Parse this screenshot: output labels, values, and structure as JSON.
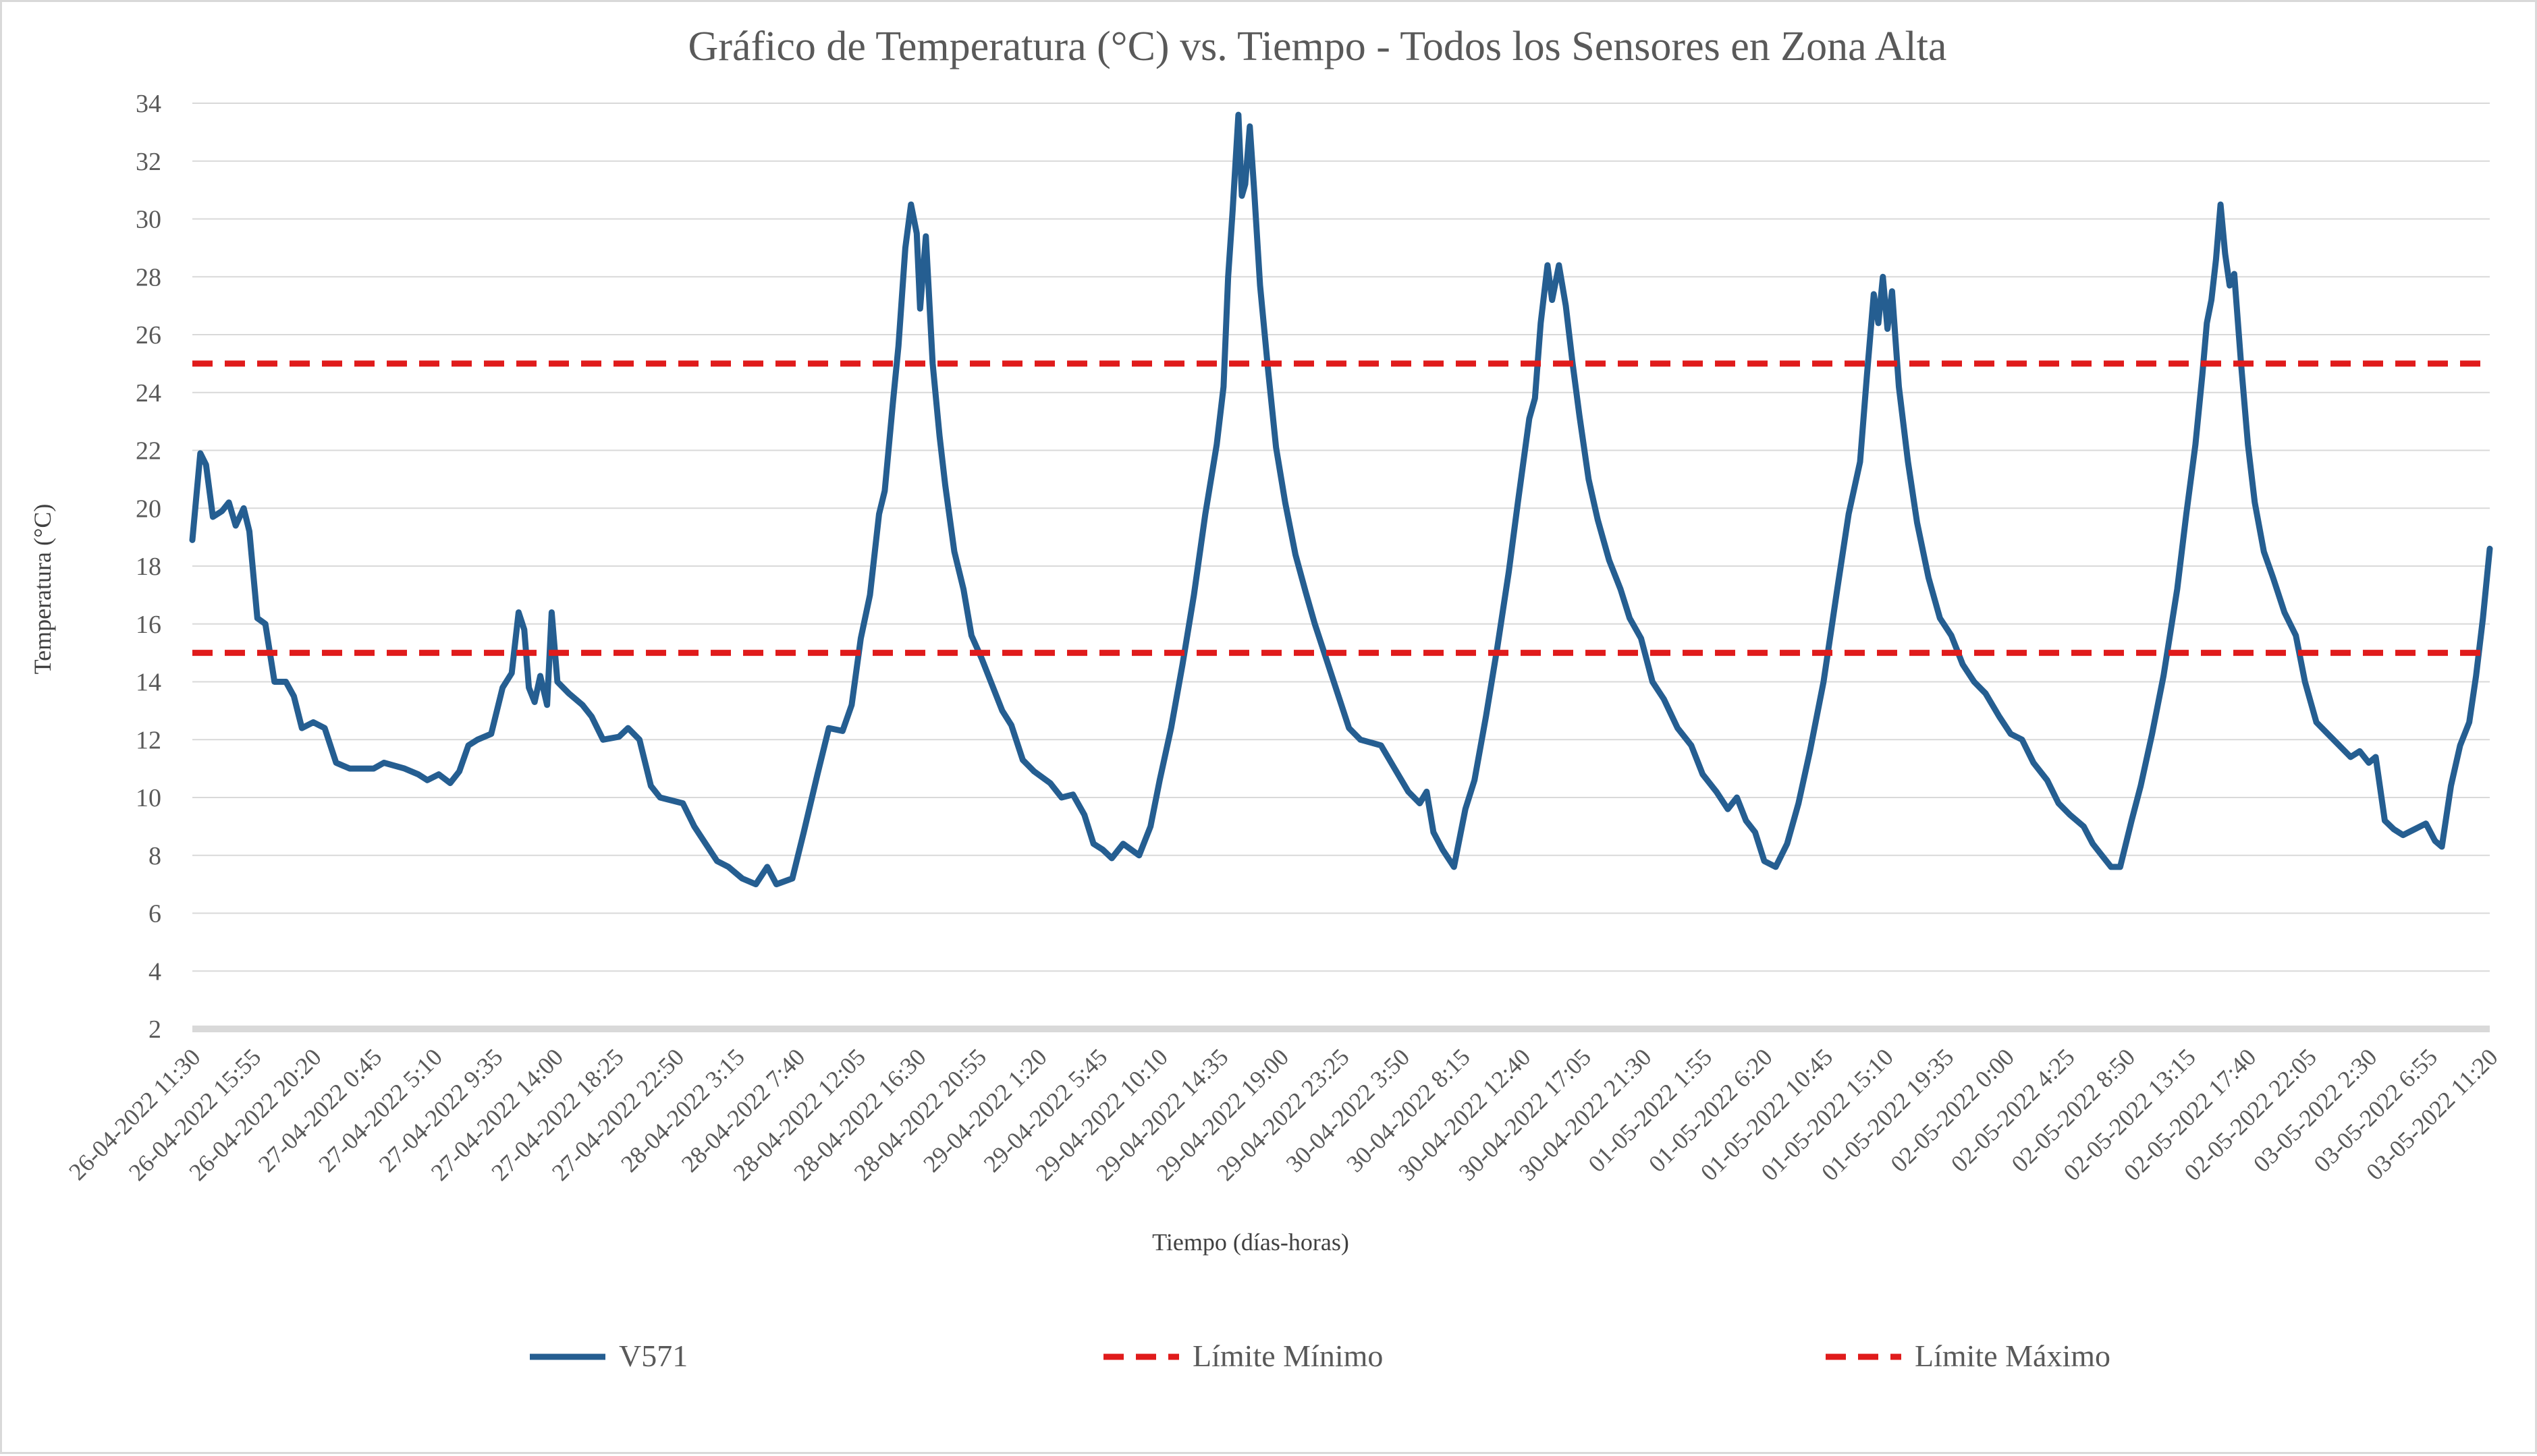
{
  "chart_data": {
    "type": "line",
    "title": "Gráfico de Temperatura (°C) vs. Tiempo - Todos los Sensores en Zona Alta",
    "xlabel": "Tiempo (días-horas)",
    "ylabel": "Temperatura (°C)",
    "ylim": [
      2,
      34
    ],
    "y_ticks": [
      2,
      4,
      6,
      8,
      10,
      12,
      14,
      16,
      18,
      20,
      22,
      24,
      26,
      28,
      30,
      32,
      34
    ],
    "x_range": [
      "2022-04-26 11:30",
      "2022-05-03 11:20"
    ],
    "x_tick_labels": [
      "26-04-2022 11:30",
      "26-04-2022 15:55",
      "26-04-2022 20:20",
      "27-04-2022 0:45",
      "27-04-2022 5:10",
      "27-04-2022 9:35",
      "27-04-2022 14:00",
      "27-04-2022 18:25",
      "27-04-2022 22:50",
      "28-04-2022 3:15",
      "28-04-2022 7:40",
      "28-04-2022 12:05",
      "28-04-2022 16:30",
      "28-04-2022 20:55",
      "29-04-2022 1:20",
      "29-04-2022 5:45",
      "29-04-2022 10:10",
      "29-04-2022 14:35",
      "29-04-2022 19:00",
      "29-04-2022 23:25",
      "30-04-2022 3:50",
      "30-04-2022 8:15",
      "30-04-2022 12:40",
      "30-04-2022 17:05",
      "30-04-2022 21:30",
      "01-05-2022 1:55",
      "01-05-2022 6:20",
      "01-05-2022 10:45",
      "01-05-2022 15:10",
      "01-05-2022 19:35",
      "02-05-2022 0:00",
      "02-05-2022 4:25",
      "02-05-2022 8:50",
      "02-05-2022 13:15",
      "02-05-2022 17:40",
      "02-05-2022 22:05",
      "03-05-2022 2:30",
      "03-05-2022 6:55",
      "03-05-2022 11:20"
    ],
    "grid": "horizontal",
    "legend_position": "bottom",
    "series": [
      {
        "name": "V571",
        "color": "#255e91",
        "style": "solid",
        "points": [
          [
            "2022-04-26 11:30",
            18.9
          ],
          [
            "2022-04-26 12:05",
            21.9
          ],
          [
            "2022-04-26 12:30",
            21.5
          ],
          [
            "2022-04-26 13:00",
            19.7
          ],
          [
            "2022-04-26 13:40",
            19.9
          ],
          [
            "2022-04-26 14:10",
            20.2
          ],
          [
            "2022-04-26 14:40",
            19.4
          ],
          [
            "2022-04-26 15:15",
            20.0
          ],
          [
            "2022-04-26 15:40",
            19.2
          ],
          [
            "2022-04-26 16:15",
            16.2
          ],
          [
            "2022-04-26 16:50",
            16.0
          ],
          [
            "2022-04-26 17:30",
            14.0
          ],
          [
            "2022-04-26 18:20",
            14.0
          ],
          [
            "2022-04-26 18:55",
            13.5
          ],
          [
            "2022-04-26 19:30",
            12.4
          ],
          [
            "2022-04-26 20:20",
            12.6
          ],
          [
            "2022-04-26 21:10",
            12.4
          ],
          [
            "2022-04-26 22:00",
            11.2
          ],
          [
            "2022-04-26 23:00",
            11.0
          ],
          [
            "2022-04-27 00:45",
            11.0
          ],
          [
            "2022-04-27 01:30",
            11.2
          ],
          [
            "2022-04-27 03:00",
            11.0
          ],
          [
            "2022-04-27 04:00",
            10.8
          ],
          [
            "2022-04-27 04:40",
            10.6
          ],
          [
            "2022-04-27 05:30",
            10.8
          ],
          [
            "2022-04-27 06:20",
            10.5
          ],
          [
            "2022-04-27 07:00",
            10.9
          ],
          [
            "2022-04-27 07:40",
            11.8
          ],
          [
            "2022-04-27 08:20",
            12.0
          ],
          [
            "2022-04-27 09:20",
            12.2
          ],
          [
            "2022-04-27 10:10",
            13.8
          ],
          [
            "2022-04-27 10:50",
            14.3
          ],
          [
            "2022-04-27 11:20",
            16.4
          ],
          [
            "2022-04-27 11:45",
            15.8
          ],
          [
            "2022-04-27 12:05",
            13.8
          ],
          [
            "2022-04-27 12:30",
            13.3
          ],
          [
            "2022-04-27 12:55",
            14.2
          ],
          [
            "2022-04-27 13:25",
            13.2
          ],
          [
            "2022-04-27 13:45",
            16.4
          ],
          [
            "2022-04-27 14:10",
            14.0
          ],
          [
            "2022-04-27 15:00",
            13.6
          ],
          [
            "2022-04-27 16:00",
            13.2
          ],
          [
            "2022-04-27 16:40",
            12.8
          ],
          [
            "2022-04-27 17:30",
            12.0
          ],
          [
            "2022-04-27 18:40",
            12.1
          ],
          [
            "2022-04-27 19:20",
            12.4
          ],
          [
            "2022-04-27 20:10",
            12.0
          ],
          [
            "2022-04-27 21:00",
            10.4
          ],
          [
            "2022-04-27 21:40",
            10.0
          ],
          [
            "2022-04-27 23:20",
            9.8
          ],
          [
            "2022-04-28 00:10",
            9.0
          ],
          [
            "2022-04-28 01:00",
            8.4
          ],
          [
            "2022-04-28 01:50",
            7.8
          ],
          [
            "2022-04-28 02:40",
            7.6
          ],
          [
            "2022-04-28 03:40",
            7.2
          ],
          [
            "2022-04-28 04:40",
            7.0
          ],
          [
            "2022-04-28 05:30",
            7.6
          ],
          [
            "2022-04-28 06:10",
            7.0
          ],
          [
            "2022-04-28 07:20",
            7.2
          ],
          [
            "2022-04-28 08:10",
            8.8
          ],
          [
            "2022-04-28 09:10",
            10.8
          ],
          [
            "2022-04-28 10:00",
            12.4
          ],
          [
            "2022-04-28 11:00",
            12.3
          ],
          [
            "2022-04-28 11:40",
            13.2
          ],
          [
            "2022-04-28 12:20",
            15.5
          ],
          [
            "2022-04-28 13:00",
            17.0
          ],
          [
            "2022-04-28 13:40",
            19.8
          ],
          [
            "2022-04-28 14:05",
            20.6
          ],
          [
            "2022-04-28 14:40",
            23.6
          ],
          [
            "2022-04-28 15:05",
            25.6
          ],
          [
            "2022-04-28 15:35",
            29.0
          ],
          [
            "2022-04-28 16:00",
            30.5
          ],
          [
            "2022-04-28 16:25",
            29.5
          ],
          [
            "2022-04-28 16:40",
            26.9
          ],
          [
            "2022-04-28 17:05",
            29.4
          ],
          [
            "2022-04-28 17:35",
            25.0
          ],
          [
            "2022-04-28 18:05",
            22.5
          ],
          [
            "2022-04-28 18:30",
            20.8
          ],
          [
            "2022-04-28 19:10",
            18.5
          ],
          [
            "2022-04-28 19:50",
            17.2
          ],
          [
            "2022-04-28 20:25",
            15.6
          ],
          [
            "2022-04-28 21:10",
            14.8
          ],
          [
            "2022-04-28 21:50",
            14.0
          ],
          [
            "2022-04-28 22:40",
            13.0
          ],
          [
            "2022-04-28 23:20",
            12.5
          ],
          [
            "2022-04-29 00:10",
            11.3
          ],
          [
            "2022-04-29 01:00",
            10.9
          ],
          [
            "2022-04-29 02:10",
            10.5
          ],
          [
            "2022-04-29 03:00",
            10.0
          ],
          [
            "2022-04-29 03:50",
            10.1
          ],
          [
            "2022-04-29 04:40",
            9.4
          ],
          [
            "2022-04-29 05:20",
            8.4
          ],
          [
            "2022-04-29 06:00",
            8.2
          ],
          [
            "2022-04-29 06:40",
            7.9
          ],
          [
            "2022-04-29 07:30",
            8.4
          ],
          [
            "2022-04-29 08:40",
            8.0
          ],
          [
            "2022-04-29 09:30",
            9.0
          ],
          [
            "2022-04-29 10:10",
            10.6
          ],
          [
            "2022-04-29 11:00",
            12.4
          ],
          [
            "2022-04-29 11:50",
            14.6
          ],
          [
            "2022-04-29 12:40",
            17.0
          ],
          [
            "2022-04-29 13:30",
            19.8
          ],
          [
            "2022-04-29 14:20",
            22.2
          ],
          [
            "2022-04-29 14:50",
            24.2
          ],
          [
            "2022-04-29 15:10",
            28.0
          ],
          [
            "2022-04-29 15:30",
            30.3
          ],
          [
            "2022-04-29 15:55",
            33.6
          ],
          [
            "2022-04-29 16:10",
            30.8
          ],
          [
            "2022-04-29 16:25",
            31.2
          ],
          [
            "2022-04-29 16:45",
            33.2
          ],
          [
            "2022-04-29 17:05",
            30.9
          ],
          [
            "2022-04-29 17:30",
            27.7
          ],
          [
            "2022-04-29 18:05",
            24.8
          ],
          [
            "2022-04-29 18:40",
            22.1
          ],
          [
            "2022-04-29 19:20",
            20.2
          ],
          [
            "2022-04-29 20:05",
            18.4
          ],
          [
            "2022-04-29 20:50",
            17.1
          ],
          [
            "2022-04-29 21:30",
            16.0
          ],
          [
            "2022-04-29 22:20",
            14.8
          ],
          [
            "2022-04-29 23:10",
            13.6
          ],
          [
            "2022-04-30 00:00",
            12.4
          ],
          [
            "2022-04-30 00:50",
            12.0
          ],
          [
            "2022-04-30 02:20",
            11.8
          ],
          [
            "2022-04-30 03:20",
            11.0
          ],
          [
            "2022-04-30 04:20",
            10.2
          ],
          [
            "2022-04-30 05:10",
            9.8
          ],
          [
            "2022-04-30 05:40",
            10.2
          ],
          [
            "2022-04-30 06:10",
            8.8
          ],
          [
            "2022-04-30 06:50",
            8.2
          ],
          [
            "2022-04-30 07:40",
            7.6
          ],
          [
            "2022-04-30 08:30",
            9.6
          ],
          [
            "2022-04-30 09:10",
            10.6
          ],
          [
            "2022-04-30 10:00",
            12.8
          ],
          [
            "2022-04-30 10:50",
            15.2
          ],
          [
            "2022-04-30 11:40",
            17.8
          ],
          [
            "2022-04-30 12:20",
            20.2
          ],
          [
            "2022-04-30 13:10",
            23.1
          ],
          [
            "2022-04-30 13:35",
            23.8
          ],
          [
            "2022-04-30 14:00",
            26.4
          ],
          [
            "2022-04-30 14:30",
            28.4
          ],
          [
            "2022-04-30 14:50",
            27.2
          ],
          [
            "2022-04-30 15:20",
            28.4
          ],
          [
            "2022-04-30 15:50",
            27.0
          ],
          [
            "2022-04-30 16:20",
            25.0
          ],
          [
            "2022-04-30 16:50",
            23.2
          ],
          [
            "2022-04-30 17:30",
            21.0
          ],
          [
            "2022-04-30 18:10",
            19.6
          ],
          [
            "2022-04-30 19:00",
            18.2
          ],
          [
            "2022-04-30 19:50",
            17.2
          ],
          [
            "2022-04-30 20:30",
            16.2
          ],
          [
            "2022-04-30 21:20",
            15.5
          ],
          [
            "2022-04-30 22:10",
            14.0
          ],
          [
            "2022-04-30 23:00",
            13.4
          ],
          [
            "2022-05-01 00:00",
            12.4
          ],
          [
            "2022-05-01 01:00",
            11.8
          ],
          [
            "2022-05-01 01:50",
            10.8
          ],
          [
            "2022-05-01 02:50",
            10.2
          ],
          [
            "2022-05-01 03:40",
            9.6
          ],
          [
            "2022-05-01 04:20",
            10.0
          ],
          [
            "2022-05-01 05:00",
            9.2
          ],
          [
            "2022-05-01 05:40",
            8.8
          ],
          [
            "2022-05-01 06:20",
            7.8
          ],
          [
            "2022-05-01 07:10",
            7.6
          ],
          [
            "2022-05-01 08:00",
            8.4
          ],
          [
            "2022-05-01 08:50",
            9.8
          ],
          [
            "2022-05-01 09:40",
            11.6
          ],
          [
            "2022-05-01 10:40",
            14.0
          ],
          [
            "2022-05-01 11:40",
            17.2
          ],
          [
            "2022-05-01 12:30",
            19.8
          ],
          [
            "2022-05-01 13:20",
            21.6
          ],
          [
            "2022-05-01 13:50",
            24.6
          ],
          [
            "2022-05-01 14:20",
            27.4
          ],
          [
            "2022-05-01 14:40",
            26.4
          ],
          [
            "2022-05-01 15:00",
            28.0
          ],
          [
            "2022-05-01 15:20",
            26.2
          ],
          [
            "2022-05-01 15:40",
            27.5
          ],
          [
            "2022-05-01 16:10",
            24.2
          ],
          [
            "2022-05-01 16:50",
            21.6
          ],
          [
            "2022-05-01 17:30",
            19.5
          ],
          [
            "2022-05-01 18:20",
            17.6
          ],
          [
            "2022-05-01 19:10",
            16.2
          ],
          [
            "2022-05-01 20:00",
            15.6
          ],
          [
            "2022-05-01 20:50",
            14.6
          ],
          [
            "2022-05-01 21:40",
            14.0
          ],
          [
            "2022-05-01 22:30",
            13.6
          ],
          [
            "2022-05-01 23:30",
            12.8
          ],
          [
            "2022-05-02 00:20",
            12.2
          ],
          [
            "2022-05-02 01:10",
            12.0
          ],
          [
            "2022-05-02 02:00",
            11.2
          ],
          [
            "2022-05-02 03:00",
            10.6
          ],
          [
            "2022-05-02 03:50",
            9.8
          ],
          [
            "2022-05-02 04:40",
            9.4
          ],
          [
            "2022-05-02 05:40",
            9.0
          ],
          [
            "2022-05-02 06:20",
            8.4
          ],
          [
            "2022-05-02 07:00",
            8.0
          ],
          [
            "2022-05-02 07:40",
            7.6
          ],
          [
            "2022-05-02 08:20",
            7.6
          ],
          [
            "2022-05-02 09:10",
            9.2
          ],
          [
            "2022-05-02 09:50",
            10.4
          ],
          [
            "2022-05-02 10:40",
            12.2
          ],
          [
            "2022-05-02 11:30",
            14.2
          ],
          [
            "2022-05-02 12:30",
            17.2
          ],
          [
            "2022-05-02 13:10",
            19.8
          ],
          [
            "2022-05-02 13:50",
            22.2
          ],
          [
            "2022-05-02 14:20",
            24.6
          ],
          [
            "2022-05-02 14:40",
            26.4
          ],
          [
            "2022-05-02 15:00",
            27.2
          ],
          [
            "2022-05-02 15:20",
            28.6
          ],
          [
            "2022-05-02 15:40",
            30.5
          ],
          [
            "2022-05-02 16:00",
            28.8
          ],
          [
            "2022-05-02 16:20",
            27.7
          ],
          [
            "2022-05-02 16:40",
            28.1
          ],
          [
            "2022-05-02 17:10",
            25.0
          ],
          [
            "2022-05-02 17:40",
            22.2
          ],
          [
            "2022-05-02 18:10",
            20.2
          ],
          [
            "2022-05-02 18:50",
            18.5
          ],
          [
            "2022-05-02 19:30",
            17.6
          ],
          [
            "2022-05-02 20:20",
            16.4
          ],
          [
            "2022-05-02 21:10",
            15.6
          ],
          [
            "2022-05-02 21:50",
            14.0
          ],
          [
            "2022-05-02 22:40",
            12.6
          ],
          [
            "2022-05-02 23:30",
            12.2
          ],
          [
            "2022-05-03 00:20",
            11.8
          ],
          [
            "2022-05-03 01:10",
            11.4
          ],
          [
            "2022-05-03 01:50",
            11.6
          ],
          [
            "2022-05-03 02:30",
            11.2
          ],
          [
            "2022-05-03 03:00",
            11.4
          ],
          [
            "2022-05-03 03:40",
            9.2
          ],
          [
            "2022-05-03 04:20",
            8.9
          ],
          [
            "2022-05-03 05:00",
            8.7
          ],
          [
            "2022-05-03 05:50",
            8.9
          ],
          [
            "2022-05-03 06:40",
            9.1
          ],
          [
            "2022-05-03 07:20",
            8.5
          ],
          [
            "2022-05-03 07:50",
            8.3
          ],
          [
            "2022-05-03 08:30",
            10.4
          ],
          [
            "2022-05-03 09:10",
            11.8
          ],
          [
            "2022-05-03 09:50",
            12.6
          ],
          [
            "2022-05-03 10:20",
            14.2
          ],
          [
            "2022-05-03 10:50",
            16.2
          ],
          [
            "2022-05-03 11:20",
            18.6
          ]
        ]
      },
      {
        "name": "Límite Mínimo",
        "color": "#e01b1b",
        "style": "dashed",
        "value": 15
      },
      {
        "name": "Límite Máximo",
        "color": "#e01b1b",
        "style": "dashed",
        "value": 25
      }
    ]
  }
}
